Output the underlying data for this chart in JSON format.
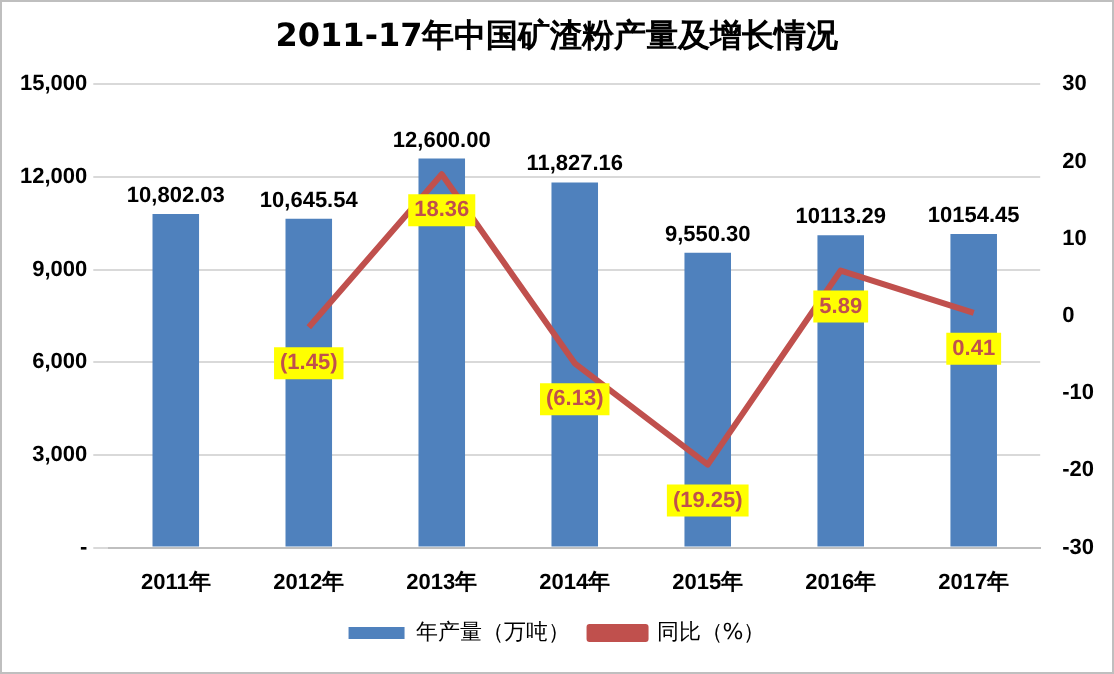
{
  "chart_data": {
    "type": "bar",
    "title": "2011-17年中国矿渣粉产量及增长情况",
    "categories": [
      "2011年",
      "2012年",
      "2013年",
      "2014年",
      "2015年",
      "2016年",
      "2017年"
    ],
    "series": [
      {
        "name": "年产量（万吨）",
        "color": "#4f81bd",
        "values": [
          10802.03,
          10645.54,
          12600.0,
          11827.16,
          9550.3,
          10113.29,
          10154.45
        ],
        "value_labels": [
          "10,802.03",
          "10,645.54",
          "12,600.00",
          "11,827.16",
          "9,550.30",
          "10113.29",
          "10154.45"
        ]
      },
      {
        "name": "同比（%）",
        "type": "line",
        "axis": "y2",
        "color": "#c0504d",
        "values": [
          null,
          -1.45,
          18.36,
          -6.13,
          -19.25,
          5.89,
          0.41
        ],
        "value_labels": [
          null,
          "(1.45)",
          "18.36",
          "(6.13)",
          "(19.25)",
          "5.89",
          "0.41"
        ]
      }
    ],
    "ylim": [
      0,
      15000
    ],
    "yticks": [
      {
        "value": 0,
        "label": "-"
      },
      {
        "value": 3000,
        "label": "3,000"
      },
      {
        "value": 6000,
        "label": "6,000"
      },
      {
        "value": 9000,
        "label": "9,000"
      },
      {
        "value": 12000,
        "label": "12,000"
      },
      {
        "value": 15000,
        "label": "15,000"
      }
    ],
    "y2lim": [
      -30,
      30
    ],
    "y2ticks": [
      -30,
      -20,
      -10,
      0,
      10,
      20,
      30
    ],
    "grid": "y",
    "legend": "bottom",
    "marker": "none"
  }
}
